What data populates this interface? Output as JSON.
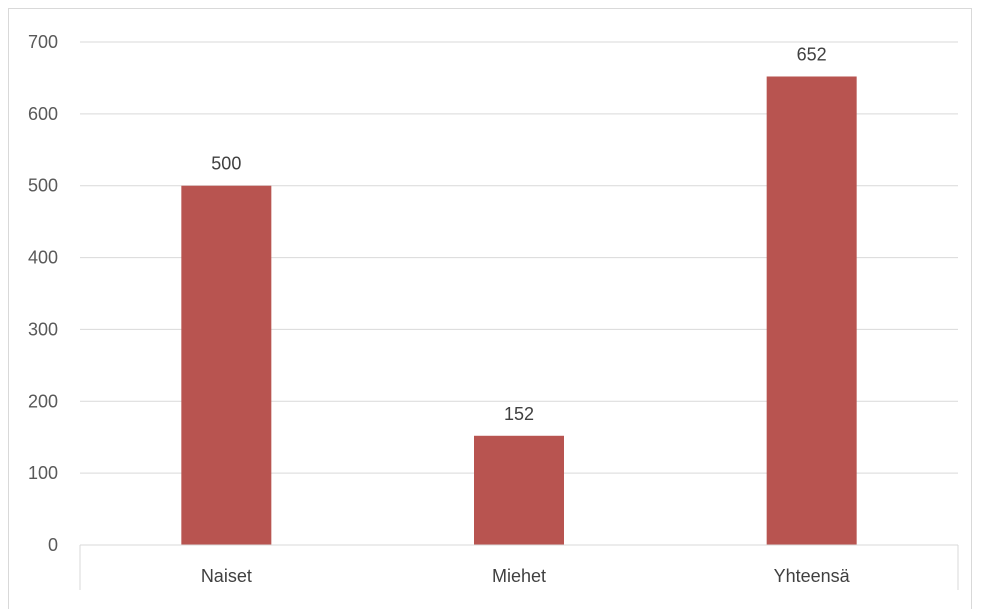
{
  "chart_data": {
    "type": "bar",
    "categories": [
      "Naiset",
      "Miehet",
      "Yhteensä"
    ],
    "values": [
      500,
      152,
      652
    ],
    "data_labels": [
      "500",
      "152",
      "652"
    ],
    "title": "",
    "xlabel": "",
    "ylabel": "",
    "ylim": [
      0,
      700
    ],
    "yticks": [
      0,
      100,
      200,
      300,
      400,
      500,
      600,
      700
    ],
    "ytick_labels": [
      "0",
      "100",
      "200",
      "300",
      "400",
      "500",
      "600",
      "700"
    ],
    "grid": true,
    "legend": "none",
    "bar_color": "#b85450",
    "gridline_color": "#d9d9d9"
  }
}
